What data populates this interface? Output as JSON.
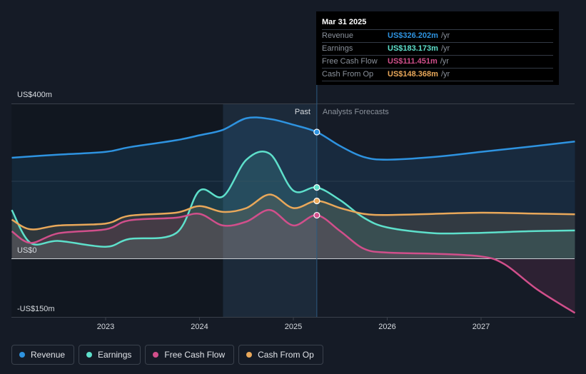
{
  "chart_data": {
    "type": "area",
    "title": "",
    "y_unit": "US$m",
    "ylim": [
      -150,
      400
    ],
    "y_tick_labels": [
      {
        "value": 400,
        "label": "US$400m"
      },
      {
        "value": 0,
        "label": "US$0"
      },
      {
        "value": -150,
        "label": "-US$150m"
      }
    ],
    "x_range": [
      2022.0,
      2028.0
    ],
    "x_ticks": [
      2023,
      2024,
      2025,
      2026,
      2027
    ],
    "past_label": "Past",
    "forecast_label": "Analysts Forecasts",
    "past_start": 2024.25,
    "divider_x": 2025.25,
    "series": [
      {
        "name": "Revenue",
        "color": "#2e93e0",
        "values": [
          [
            2022.0,
            260
          ],
          [
            2022.5,
            268
          ],
          [
            2023.0,
            275
          ],
          [
            2023.25,
            287
          ],
          [
            2023.75,
            305
          ],
          [
            2024.0,
            318
          ],
          [
            2024.25,
            332
          ],
          [
            2024.5,
            362
          ],
          [
            2024.75,
            360
          ],
          [
            2025.0,
            345
          ],
          [
            2025.25,
            326.202
          ],
          [
            2025.5,
            290
          ],
          [
            2025.75,
            262
          ],
          [
            2026.0,
            255
          ],
          [
            2026.5,
            262
          ],
          [
            2027.0,
            275
          ],
          [
            2027.5,
            288
          ],
          [
            2028.0,
            302
          ]
        ]
      },
      {
        "name": "Earnings",
        "color": "#5ee0cb",
        "values": [
          [
            2022.0,
            125
          ],
          [
            2022.2,
            40
          ],
          [
            2022.5,
            45
          ],
          [
            2023.0,
            30
          ],
          [
            2023.25,
            50
          ],
          [
            2023.75,
            65
          ],
          [
            2024.0,
            175
          ],
          [
            2024.25,
            160
          ],
          [
            2024.5,
            255
          ],
          [
            2024.75,
            270
          ],
          [
            2025.0,
            175
          ],
          [
            2025.25,
            183.173
          ],
          [
            2025.5,
            150
          ],
          [
            2025.75,
            105
          ],
          [
            2026.0,
            80
          ],
          [
            2026.5,
            65
          ],
          [
            2027.0,
            66
          ],
          [
            2027.5,
            70
          ],
          [
            2028.0,
            72
          ]
        ]
      },
      {
        "name": "Free Cash Flow",
        "color": "#d14f8b",
        "values": [
          [
            2022.0,
            70
          ],
          [
            2022.2,
            40
          ],
          [
            2022.5,
            65
          ],
          [
            2023.0,
            75
          ],
          [
            2023.25,
            98
          ],
          [
            2023.75,
            105
          ],
          [
            2024.0,
            115
          ],
          [
            2024.25,
            85
          ],
          [
            2024.5,
            95
          ],
          [
            2024.75,
            125
          ],
          [
            2025.0,
            85
          ],
          [
            2025.25,
            111.451
          ],
          [
            2025.5,
            70
          ],
          [
            2025.75,
            25
          ],
          [
            2026.0,
            15
          ],
          [
            2026.5,
            12
          ],
          [
            2027.0,
            5
          ],
          [
            2027.25,
            -15
          ],
          [
            2027.6,
            -80
          ],
          [
            2028.0,
            -140
          ]
        ]
      },
      {
        "name": "Cash From Op",
        "color": "#e9a85a",
        "values": [
          [
            2022.0,
            100
          ],
          [
            2022.2,
            75
          ],
          [
            2022.5,
            85
          ],
          [
            2023.0,
            90
          ],
          [
            2023.25,
            110
          ],
          [
            2023.75,
            118
          ],
          [
            2024.0,
            135
          ],
          [
            2024.25,
            120
          ],
          [
            2024.5,
            130
          ],
          [
            2024.75,
            165
          ],
          [
            2025.0,
            130
          ],
          [
            2025.25,
            148.368
          ],
          [
            2025.5,
            130
          ],
          [
            2025.75,
            115
          ],
          [
            2026.0,
            112
          ],
          [
            2026.5,
            115
          ],
          [
            2027.0,
            118
          ],
          [
            2027.5,
            116
          ],
          [
            2028.0,
            114
          ]
        ]
      }
    ]
  },
  "tooltip": {
    "date": "Mar 31 2025",
    "rows": [
      {
        "label": "Revenue",
        "value": "US$326.202m",
        "unit": "/yr",
        "color": "#2e93e0"
      },
      {
        "label": "Earnings",
        "value": "US$183.173m",
        "unit": "/yr",
        "color": "#5ee0cb"
      },
      {
        "label": "Free Cash Flow",
        "value": "US$111.451m",
        "unit": "/yr",
        "color": "#d14f8b"
      },
      {
        "label": "Cash From Op",
        "value": "US$148.368m",
        "unit": "/yr",
        "color": "#e9a85a"
      }
    ]
  },
  "legend": [
    {
      "label": "Revenue",
      "color": "#2e93e0"
    },
    {
      "label": "Earnings",
      "color": "#5ee0cb"
    },
    {
      "label": "Free Cash Flow",
      "color": "#d14f8b"
    },
    {
      "label": "Cash From Op",
      "color": "#e9a85a"
    }
  ]
}
